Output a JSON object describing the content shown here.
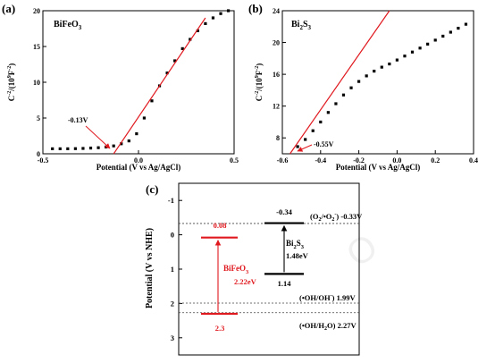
{
  "panels": {
    "a": {
      "letter": "(a)",
      "name": "BiFeO",
      "name_sub": "3",
      "ylabel": "C",
      "ylabel_sup1": "-2",
      "ylabel_mid": "/(10",
      "ylabel_sup2": "9",
      "ylabel_end": "F",
      "ylabel_sup3": "-2",
      "ylabel_close": ")",
      "xlabel": "Potential (V vs Ag/AgCl)",
      "annotation": "-0.13V"
    },
    "b": {
      "letter": "(b)",
      "name": "Bi",
      "name_sub1": "2",
      "name_mid": "S",
      "name_sub2": "3",
      "ylabel": "C",
      "ylabel_sup1": "-2",
      "ylabel_mid": "/(10",
      "ylabel_sup2": "9",
      "ylabel_end": "F",
      "ylabel_sup3": "-2",
      "ylabel_close": ")",
      "xlabel": "Potential (V vs Ag/AgCl)",
      "annotation": "-0.55V"
    },
    "c": {
      "letter": "(c)",
      "ylabel": "Potential (V vs NHE)",
      "bifeo_name": "BiFeO",
      "bifeo_sub": "3",
      "bifeo_gap": "2.22eV",
      "bifeo_cb": "0.08",
      "bifeo_vb": "2.3",
      "bis_name": "Bi",
      "bis_sub1": "2",
      "bis_mid": "S",
      "bis_sub2": "3",
      "bis_gap": "1.48eV",
      "bis_cb": "-0.34",
      "bis_vb": "1.14",
      "ref1": "(O",
      "ref1_sub": "2",
      "ref1_b": "/•O",
      "ref1_sub2": "2",
      "ref1_sup2": "-",
      "ref1_c": ") -0.33V",
      "ref2": "(•OH/OH",
      "ref2_sup": "-",
      "ref2_c": ")  1.99V",
      "ref3": "(•OH/H",
      "ref3_sub": "2",
      "ref3_c": "O)  2.27V"
    }
  },
  "colors": {
    "fit_line": "#e0191f",
    "bifeo": "#e0191f",
    "bis": "#000000",
    "marker": "#000000"
  },
  "chart_data": [
    {
      "type": "scatter",
      "panel": "a",
      "title": "BiFeO3",
      "xlabel": "Potential (V vs Ag/AgCl)",
      "ylabel": "C-2/(109F-2)",
      "xlim": [
        -0.5,
        0.5
      ],
      "ylim": [
        0,
        20
      ],
      "xticks": [
        -0.5,
        0.0,
        0.5
      ],
      "xtick_labels": [
        "-0.5",
        "0.0",
        "0.5"
      ],
      "yticks": [
        0,
        5,
        10,
        15,
        20
      ],
      "ytick_labels": [
        "0",
        "5",
        "10",
        "15",
        "20"
      ],
      "x": [
        -0.45,
        -0.41,
        -0.37,
        -0.33,
        -0.29,
        -0.25,
        -0.21,
        -0.17,
        -0.13,
        -0.09,
        -0.05,
        -0.01,
        0.03,
        0.07,
        0.11,
        0.15,
        0.19,
        0.23,
        0.27,
        0.31,
        0.35,
        0.39,
        0.43,
        0.47
      ],
      "y": [
        0.7,
        0.7,
        0.7,
        0.72,
        0.75,
        0.8,
        0.85,
        0.95,
        1.1,
        1.4,
        1.8,
        2.8,
        5.0,
        7.4,
        9.5,
        11.3,
        13.0,
        14.7,
        16.0,
        17.2,
        18.2,
        19.0,
        19.6,
        20.0
      ],
      "fit_line": {
        "x": [
          -0.13,
          0.35
        ],
        "y": [
          0,
          19.0
        ]
      }
    },
    {
      "type": "scatter",
      "panel": "b",
      "title": "Bi2S3",
      "xlabel": "Potential (V vs Ag/AgCl)",
      "ylabel": "C-2/(109F-2)",
      "xlim": [
        -0.6,
        0.4
      ],
      "ylim": [
        6,
        24
      ],
      "xticks": [
        -0.6,
        -0.4,
        -0.2,
        0.0,
        0.2,
        0.4
      ],
      "xtick_labels": [
        "-0.6",
        "-0.4",
        "-0.2",
        "0.0",
        "0.2",
        "0.4"
      ],
      "yticks": [
        8,
        12,
        16,
        20,
        24
      ],
      "ytick_labels": [
        "8",
        "12",
        "16",
        "20",
        "24"
      ],
      "x": [
        -0.52,
        -0.48,
        -0.44,
        -0.4,
        -0.36,
        -0.32,
        -0.28,
        -0.24,
        -0.2,
        -0.16,
        -0.12,
        -0.08,
        -0.04,
        0.0,
        0.04,
        0.08,
        0.12,
        0.16,
        0.2,
        0.24,
        0.28,
        0.32,
        0.36
      ],
      "y": [
        6.9,
        7.8,
        8.9,
        10.0,
        11.2,
        12.3,
        13.4,
        14.3,
        15.1,
        15.8,
        16.4,
        16.9,
        17.3,
        17.8,
        18.3,
        18.8,
        19.3,
        19.8,
        20.3,
        20.8,
        21.3,
        21.8,
        22.3
      ],
      "fit_line": {
        "x": [
          -0.56,
          -0.04
        ],
        "y": [
          6.0,
          24.0
        ]
      }
    },
    {
      "type": "diagram",
      "panel": "c",
      "ylabel": "Potential (V vs NHE)",
      "ylim": [
        -1.5,
        3.5
      ],
      "yticks": [
        -1,
        0,
        1,
        2,
        3
      ],
      "ytick_labels": [
        "-1",
        "0",
        "1",
        "2",
        "3"
      ],
      "reference_levels": [
        -0.33,
        1.99,
        2.27
      ],
      "bands": [
        {
          "name": "BiFeO3",
          "cb": 0.08,
          "vb": 2.3,
          "gap_eV": 2.22
        },
        {
          "name": "Bi2S3",
          "cb": -0.34,
          "vb": 1.14,
          "gap_eV": 1.48
        }
      ]
    }
  ]
}
